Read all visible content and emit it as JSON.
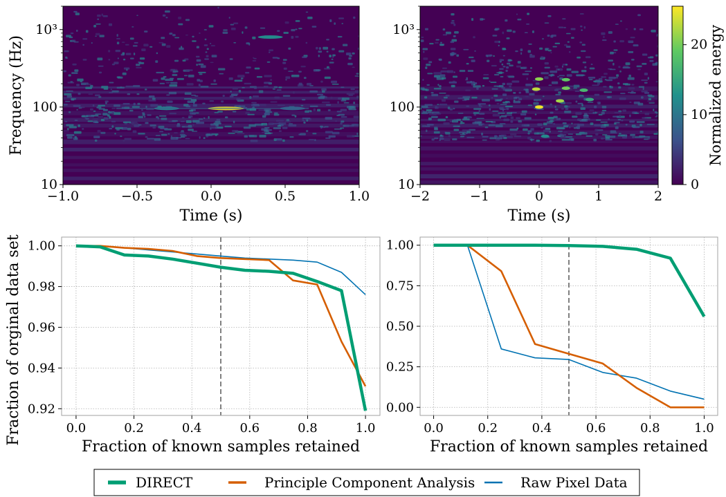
{
  "spectrograms": [
    {
      "id": "left",
      "type": "heatmap",
      "xlabel": "Time (s)",
      "ylabel": "Frequency (Hz)",
      "xlim": [
        -1.0,
        1.0
      ],
      "ylim": [
        10,
        2000
      ],
      "yscale": "log",
      "xticks": [
        "−1.0",
        "−0.5",
        "0.0",
        "0.5",
        "1.0"
      ],
      "xtick_values": [
        -1.0,
        -0.5,
        0.0,
        0.5,
        1.0
      ],
      "yticks": [
        "10",
        "100",
        "10³"
      ],
      "ytick_values": [
        10,
        100,
        1000
      ],
      "base_color": "#440154",
      "hot_spots": [
        {
          "x": 0.1,
          "f": 96,
          "energy": 25
        },
        {
          "x": -0.3,
          "f": 96,
          "energy": 11
        },
        {
          "x": 0.55,
          "f": 96,
          "energy": 8
        },
        {
          "x": 0.4,
          "f": 800,
          "energy": 12
        }
      ]
    },
    {
      "id": "right",
      "type": "heatmap",
      "xlabel": "Time (s)",
      "ylabel": "",
      "xlim": [
        -2,
        2
      ],
      "ylim": [
        10,
        2000
      ],
      "yscale": "log",
      "xticks": [
        "−2",
        "−1",
        "0",
        "1",
        "2"
      ],
      "xtick_values": [
        -2,
        -1,
        0,
        1,
        2
      ],
      "yticks": [
        "10",
        "100",
        "10³"
      ],
      "ytick_values": [
        10,
        100,
        1000
      ],
      "base_color": "#440154",
      "hot_spots": [
        {
          "x": 0.0,
          "f": 100,
          "energy": 25
        },
        {
          "x": -0.05,
          "f": 170,
          "energy": 23
        },
        {
          "x": 0.0,
          "f": 230,
          "energy": 21
        },
        {
          "x": 0.35,
          "f": 120,
          "energy": 22
        },
        {
          "x": 0.45,
          "f": 175,
          "energy": 20
        },
        {
          "x": 0.45,
          "f": 225,
          "energy": 19
        },
        {
          "x": 0.75,
          "f": 165,
          "energy": 17
        },
        {
          "x": 0.85,
          "f": 125,
          "energy": 15
        },
        {
          "x": 0.1,
          "f": 42,
          "energy": 12
        }
      ]
    }
  ],
  "colorbar": {
    "label": "Normalized energy",
    "ticks": [
      "0",
      "10",
      "20"
    ],
    "tick_values": [
      0,
      10,
      20
    ],
    "range": [
      0,
      25.5
    ],
    "colormap": "viridis",
    "stops": [
      "#440154",
      "#3b528b",
      "#21918c",
      "#5ec962",
      "#fde725"
    ]
  },
  "chart_data": [
    {
      "type": "line",
      "id": "bottom-left",
      "xlabel": "Fraction of known samples retained",
      "ylabel": "Fraction of orginal data set",
      "xlim": [
        -0.05,
        1.05
      ],
      "ylim": [
        0.9167,
        1.0043
      ],
      "xticks": [
        "0.0",
        "0.2",
        "0.4",
        "0.6",
        "0.8",
        "1.0"
      ],
      "xtick_values": [
        0,
        0.2,
        0.4,
        0.6,
        0.8,
        1.0
      ],
      "yticks": [
        "0.92",
        "0.94",
        "0.96",
        "0.98",
        "1.00"
      ],
      "ytick_values": [
        0.92,
        0.94,
        0.96,
        0.98,
        1.0
      ],
      "grid": true,
      "vline": 0.5,
      "series": [
        {
          "name": "Raw Pixel Data",
          "color": "#0072b2",
          "width": 1.6,
          "x": [
            0,
            0.083,
            0.167,
            0.25,
            0.333,
            0.417,
            0.5,
            0.583,
            0.667,
            0.75,
            0.833,
            0.917,
            1.0
          ],
          "y": [
            1.0,
            1.0,
            0.999,
            0.998,
            0.997,
            0.996,
            0.995,
            0.994,
            0.9935,
            0.993,
            0.992,
            0.987,
            0.976
          ]
        },
        {
          "name": "Principle Component Analysis",
          "color": "#d55e00",
          "width": 2.6,
          "x": [
            0,
            0.083,
            0.167,
            0.25,
            0.333,
            0.417,
            0.5,
            0.583,
            0.667,
            0.75,
            0.833,
            0.917,
            1.0
          ],
          "y": [
            1.0,
            1.0,
            0.999,
            0.9985,
            0.9975,
            0.995,
            0.994,
            0.9935,
            0.993,
            0.983,
            0.981,
            0.953,
            0.931
          ]
        },
        {
          "name": "DIRECT",
          "color": "#009e73",
          "width": 4.5,
          "x": [
            0,
            0.083,
            0.167,
            0.25,
            0.333,
            0.417,
            0.5,
            0.583,
            0.667,
            0.75,
            0.833,
            0.917,
            1.0
          ],
          "y": [
            1.0,
            0.9995,
            0.9955,
            0.995,
            0.9935,
            0.9915,
            0.9895,
            0.988,
            0.9875,
            0.9865,
            0.9825,
            0.978,
            0.919
          ]
        }
      ]
    },
    {
      "type": "line",
      "id": "bottom-right",
      "xlabel": "Fraction of known samples retained",
      "ylabel": "",
      "xlim": [
        -0.05,
        1.05
      ],
      "ylim": [
        -0.05,
        1.05
      ],
      "xticks": [
        "0.0",
        "0.2",
        "0.4",
        "0.6",
        "0.8",
        "1.0"
      ],
      "xtick_values": [
        0,
        0.2,
        0.4,
        0.6,
        0.8,
        1.0
      ],
      "yticks": [
        "0.00",
        "0.25",
        "0.50",
        "0.75",
        "1.00"
      ],
      "ytick_values": [
        0.0,
        0.25,
        0.5,
        0.75,
        1.0
      ],
      "grid": true,
      "vline": 0.5,
      "series": [
        {
          "name": "Raw Pixel Data",
          "color": "#0072b2",
          "width": 1.6,
          "x": [
            0,
            0.125,
            0.25,
            0.375,
            0.5,
            0.625,
            0.75,
            0.875,
            1.0
          ],
          "y": [
            1.0,
            1.0,
            0.36,
            0.305,
            0.295,
            0.215,
            0.18,
            0.1,
            0.05
          ]
        },
        {
          "name": "Principle Component Analysis",
          "color": "#d55e00",
          "width": 2.6,
          "x": [
            0,
            0.125,
            0.25,
            0.375,
            0.5,
            0.625,
            0.75,
            0.875,
            1.0
          ],
          "y": [
            1.0,
            1.0,
            0.84,
            0.39,
            0.33,
            0.27,
            0.12,
            0.0,
            0.0
          ]
        },
        {
          "name": "DIRECT",
          "color": "#009e73",
          "width": 4.5,
          "x": [
            0,
            0.125,
            0.25,
            0.375,
            0.5,
            0.625,
            0.75,
            0.875,
            1.0
          ],
          "y": [
            1.0,
            1.0,
            1.0,
            1.0,
            0.998,
            0.993,
            0.975,
            0.92,
            0.56
          ]
        }
      ]
    }
  ],
  "legend": {
    "placement": "bottom-center",
    "items": [
      {
        "label": "DIRECT",
        "color": "#009e73",
        "width": 4.5
      },
      {
        "label": "Principle Component Analysis",
        "color": "#d55e00",
        "width": 2.6
      },
      {
        "label": "Raw Pixel Data",
        "color": "#0072b2",
        "width": 1.6
      }
    ]
  }
}
